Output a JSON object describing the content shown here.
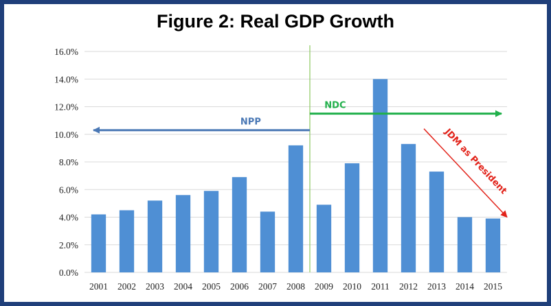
{
  "chart_data": {
    "type": "bar",
    "title": "Figure 2: Real GDP Growth",
    "xlabel": "",
    "ylabel": "",
    "categories": [
      "2001",
      "2002",
      "2003",
      "2004",
      "2005",
      "2006",
      "2007",
      "2008",
      "2009",
      "2010",
      "2011",
      "2012",
      "2013",
      "2014",
      "2015"
    ],
    "values": [
      4.2,
      4.5,
      5.2,
      5.6,
      5.9,
      6.9,
      4.4,
      9.2,
      4.9,
      7.9,
      14.0,
      9.3,
      7.3,
      4.0,
      3.9
    ],
    "ylim": [
      0,
      16
    ],
    "yticks": [
      0,
      2,
      4,
      6,
      8,
      10,
      12,
      14,
      16
    ],
    "ytick_labels": [
      "0.0%",
      "2.0%",
      "4.0%",
      "6.0%",
      "8.0%",
      "10.0%",
      "12.0%",
      "14.0%",
      "16.0%"
    ],
    "grid": true,
    "legend": "none",
    "bar_color": "#4f8fd4",
    "divider_after_category": "2008",
    "annotations": [
      {
        "id": "npp",
        "text": "NPP",
        "color": "#4a78b5",
        "arrow": "left",
        "from_category": "2008",
        "to_category": "2001",
        "level": 10.3
      },
      {
        "id": "ndc",
        "text": "NDC",
        "color": "#21b04b",
        "arrow": "right",
        "from_category": "2009",
        "to_category": "2015",
        "level": 11.5
      },
      {
        "id": "jdm",
        "text": "JDM as President",
        "color": "#e2231a",
        "arrow": "down-right",
        "from_category": "2012",
        "to_category": "2015",
        "from_level": 10.4,
        "to_level": 4.0
      }
    ]
  },
  "colors": {
    "frame": "#1f3f7a",
    "grid": "#d9d9d9",
    "divider": "#8cc860"
  }
}
